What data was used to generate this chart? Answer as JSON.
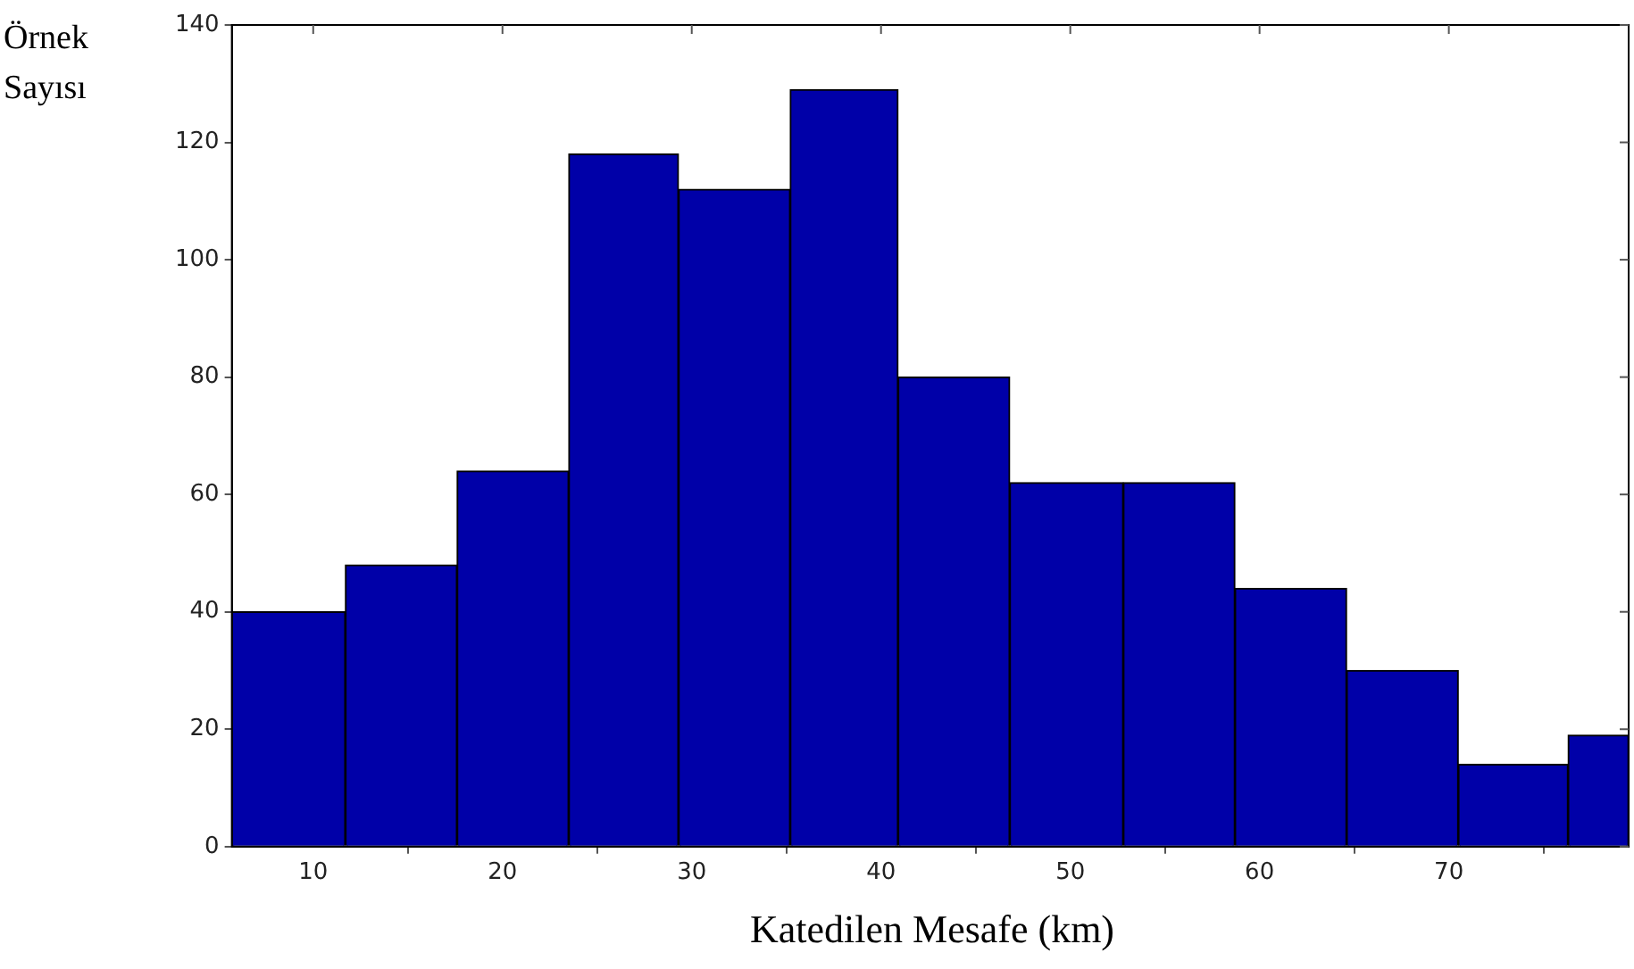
{
  "chart_data": {
    "type": "histogram",
    "xlabel": "Katedilen Mesafe (km)",
    "ylabel": "Örnek Sayısı",
    "bins": [
      5.7,
      11.7,
      17.6,
      23.5,
      29.3,
      35.2,
      40.9,
      46.8,
      52.8,
      58.7,
      64.6,
      70.5,
      76.3,
      79.5
    ],
    "values": [
      40,
      48,
      64,
      118,
      112,
      129,
      80,
      62,
      62,
      44,
      30,
      14,
      19
    ],
    "color": "#0000a8",
    "xlim": [
      5.7,
      79.5
    ],
    "xticks": [
      10,
      20,
      30,
      40,
      50,
      60,
      70
    ],
    "ylim": [
      0,
      140
    ],
    "yticks": [
      0,
      20,
      40,
      60,
      80,
      100,
      120,
      140
    ],
    "grid": false,
    "legend": false
  }
}
